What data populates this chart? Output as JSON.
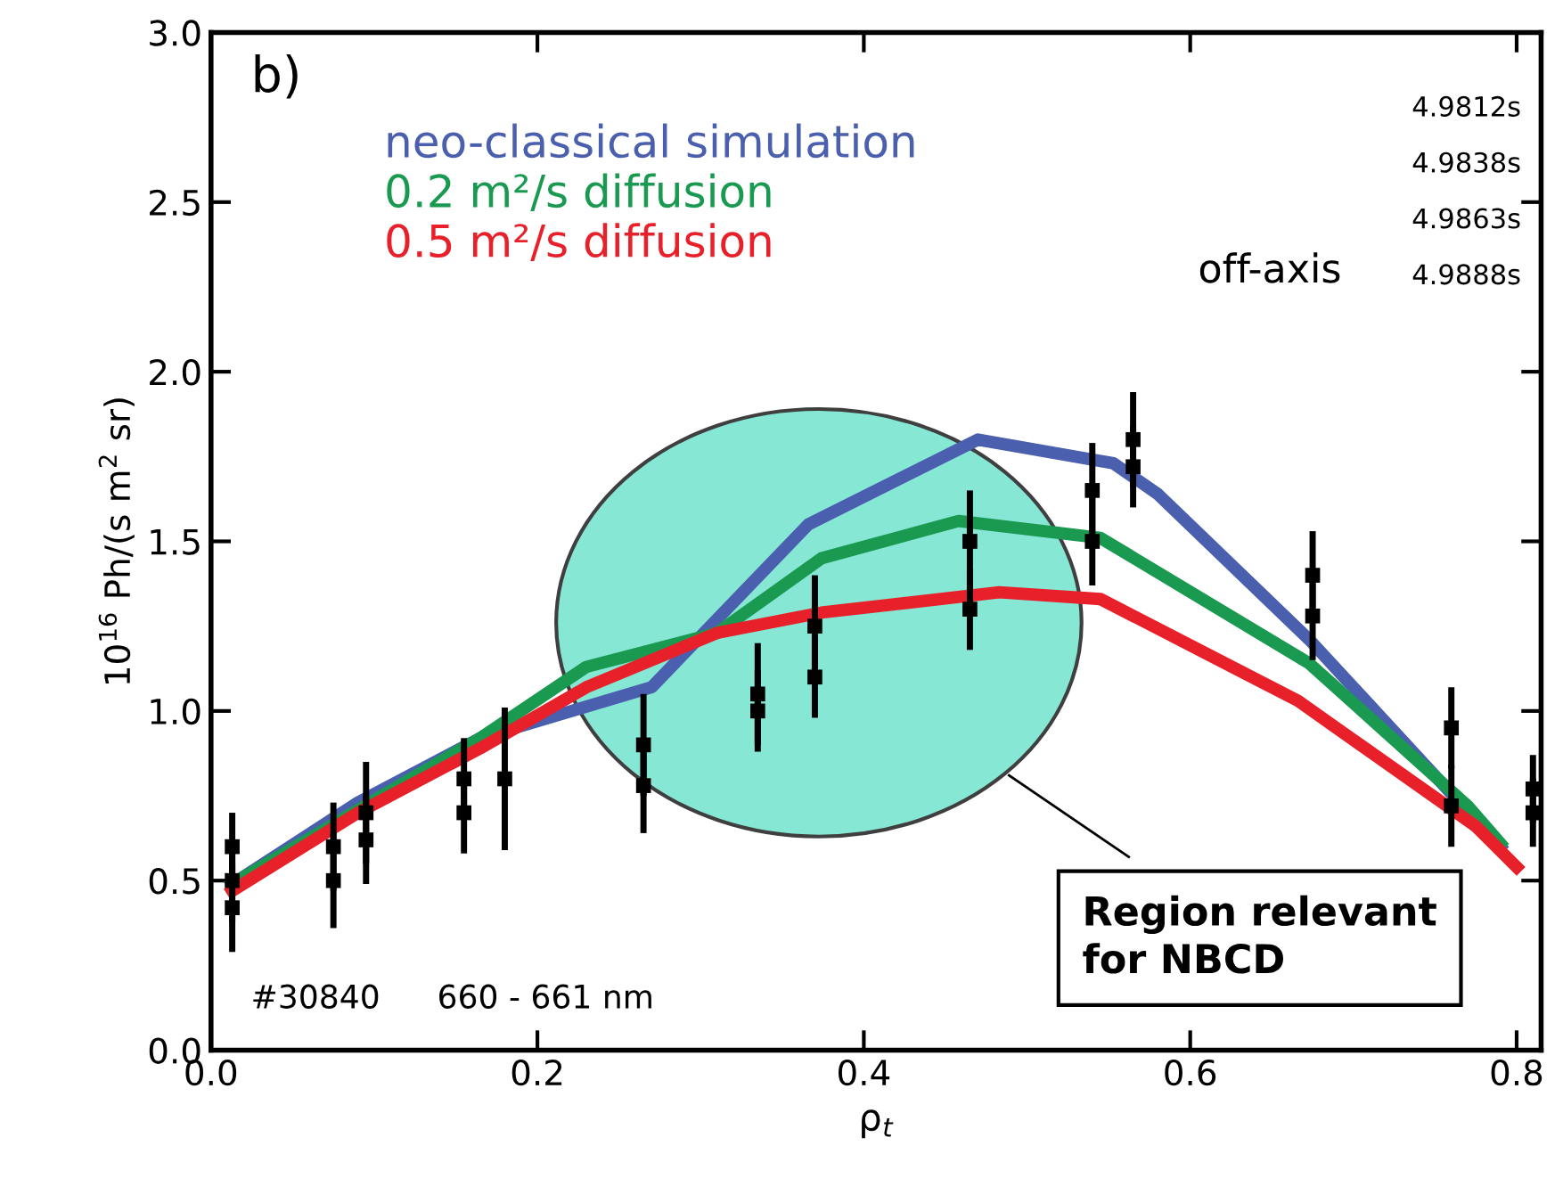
{
  "chart_data": {
    "type": "line",
    "xlabel": "ρ$_{t}$",
    "ylabel": "10$^{16}$ Ph/(s m$^{2}$ sr)",
    "xlim": [
      0.0,
      0.815
    ],
    "xticks": [
      {
        "value": 0.0,
        "label": "0.0"
      },
      0.2,
      0.4,
      0.6,
      0.8
    ],
    "ylim": [
      0.0,
      3.0
    ],
    "yticks": [
      {
        "value": 0.0,
        "label": "0.0"
      },
      0.5,
      {
        "value": 1.0,
        "label": "1.0"
      },
      1.5,
      {
        "value": 2.0,
        "label": "2.0"
      },
      2.5,
      {
        "value": 3.0,
        "label": "3.0"
      }
    ],
    "grid": false,
    "legend": "top left",
    "marker": "none",
    "series": [
      {
        "name": "neo-classical simulation",
        "color": "#4a5fad",
        "x": [
          0.013,
          0.09,
          0.165,
          0.27,
          0.366,
          0.47,
          0.553,
          0.58,
          0.673,
          0.79
        ],
        "values": [
          0.49,
          0.73,
          0.92,
          1.07,
          1.55,
          1.8,
          1.73,
          1.64,
          1.21,
          0.6
        ]
      },
      {
        "name": "0.2 m²/s diffusion",
        "color": "#1a9a50",
        "x": [
          0.013,
          0.165,
          0.23,
          0.31,
          0.374,
          0.458,
          0.545,
          0.673,
          0.77,
          0.79
        ],
        "values": [
          0.49,
          0.92,
          1.13,
          1.23,
          1.45,
          1.56,
          1.51,
          1.14,
          0.72,
          0.61
        ]
      },
      {
        "name": "0.5 m²/s diffusion",
        "color": "#e8202a",
        "x": [
          0.013,
          0.09,
          0.165,
          0.23,
          0.31,
          0.374,
          0.483,
          0.545,
          0.666,
          0.775,
          0.8
        ],
        "values": [
          0.47,
          0.7,
          0.89,
          1.07,
          1.23,
          1.29,
          1.35,
          1.33,
          1.03,
          0.66,
          0.54
        ]
      },
      {
        "type": "scatter",
        "color": "#000000",
        "marker": "square",
        "x": [
          0.013,
          0.013,
          0.013,
          0.075,
          0.075,
          0.095,
          0.095,
          0.155,
          0.155,
          0.18,
          0.265,
          0.265,
          0.335,
          0.335,
          0.37,
          0.37,
          0.465,
          0.465,
          0.54,
          0.54,
          0.565,
          0.565,
          0.675,
          0.675,
          0.76,
          0.76,
          0.81,
          0.81
        ],
        "values": [
          0.6,
          0.5,
          0.42,
          0.6,
          0.5,
          0.7,
          0.62,
          0.8,
          0.7,
          0.8,
          0.9,
          0.78,
          1.05,
          1.0,
          1.25,
          1.1,
          1.5,
          1.3,
          1.65,
          1.5,
          1.8,
          1.72,
          1.4,
          1.28,
          0.95,
          0.72,
          0.77,
          0.7
        ],
        "errors": [
          0.1,
          0.12,
          0.13,
          0.13,
          0.14,
          0.15,
          0.13,
          0.12,
          0.12,
          0.21,
          0.15,
          0.14,
          0.15,
          0.12,
          0.15,
          0.12,
          0.15,
          0.12,
          0.14,
          0.13,
          0.14,
          0.12,
          0.13,
          0.13,
          0.12,
          0.12,
          0.1,
          0.1
        ]
      }
    ],
    "annotations": [
      "b)",
      "4.9812s",
      "4.9838s",
      "4.9863s",
      "4.9888s",
      "off-axis",
      "#30840",
      "660 - 661 nm",
      "Region relevant for NBCD"
    ]
  }
}
